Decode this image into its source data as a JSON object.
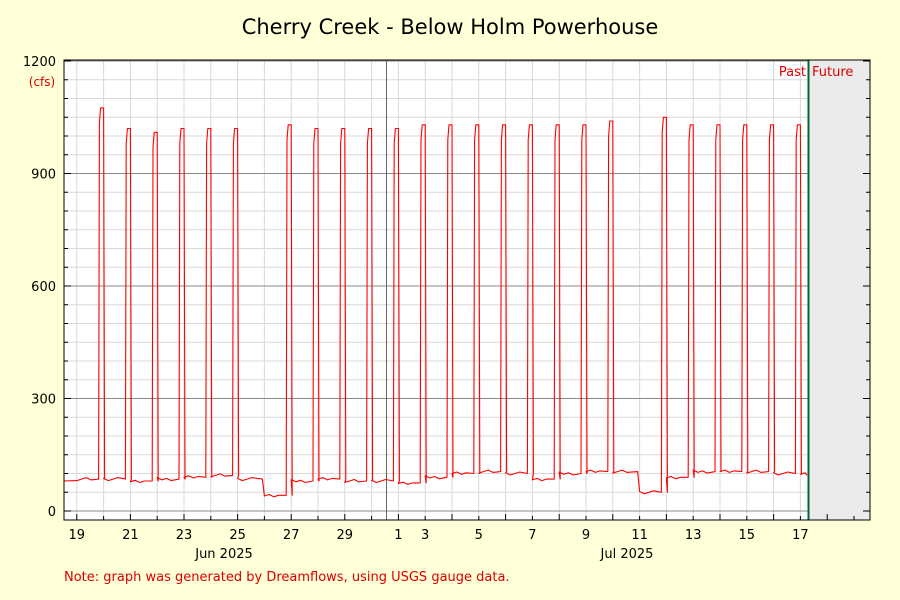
{
  "chart_data": {
    "type": "line",
    "title": "Cherry Creek - Below Holm Powerhouse",
    "units_label": "(cfs)",
    "ylim": [
      0,
      1200
    ],
    "y_ticks": [
      0,
      300,
      600,
      900,
      1200
    ],
    "x_day_labels": [
      "19",
      "21",
      "23",
      "25",
      "27",
      "29",
      "1",
      "3",
      "5",
      "7",
      "9",
      "11",
      "13",
      "15",
      "17"
    ],
    "month_labels": [
      "Jun 2025",
      "Jul 2025"
    ],
    "past_label": "Past",
    "future_label": "Future",
    "note": "Note: graph was generated by Dreamflows, using USGS gauge data.",
    "grid": true,
    "series": [
      {
        "color": "#ff0000",
        "base_flows": [
          85,
          85,
          80,
          85,
          90,
          95,
          85,
          42,
          80,
          85,
          80,
          80,
          75,
          90,
          100,
          105,
          100,
          85,
          100,
          105,
          105,
          50,
          90,
          105,
          105,
          105,
          100,
          100,
          105
        ],
        "peak_flows": [
          1075,
          1020,
          1010,
          1020,
          1020,
          1020,
          0,
          1030,
          1020,
          1020,
          1020,
          1020,
          1030,
          1030,
          1030,
          1030,
          1030,
          1030,
          1030,
          1040,
          0,
          1050,
          1030,
          1030,
          1030,
          1030,
          1030,
          1030,
          0
        ]
      }
    ]
  },
  "colors": {
    "background": "#ffffd8",
    "plot": "#ffffff",
    "future_shade": "#ebebeb",
    "now_line": "#006633",
    "text_red": "#dd0000"
  }
}
